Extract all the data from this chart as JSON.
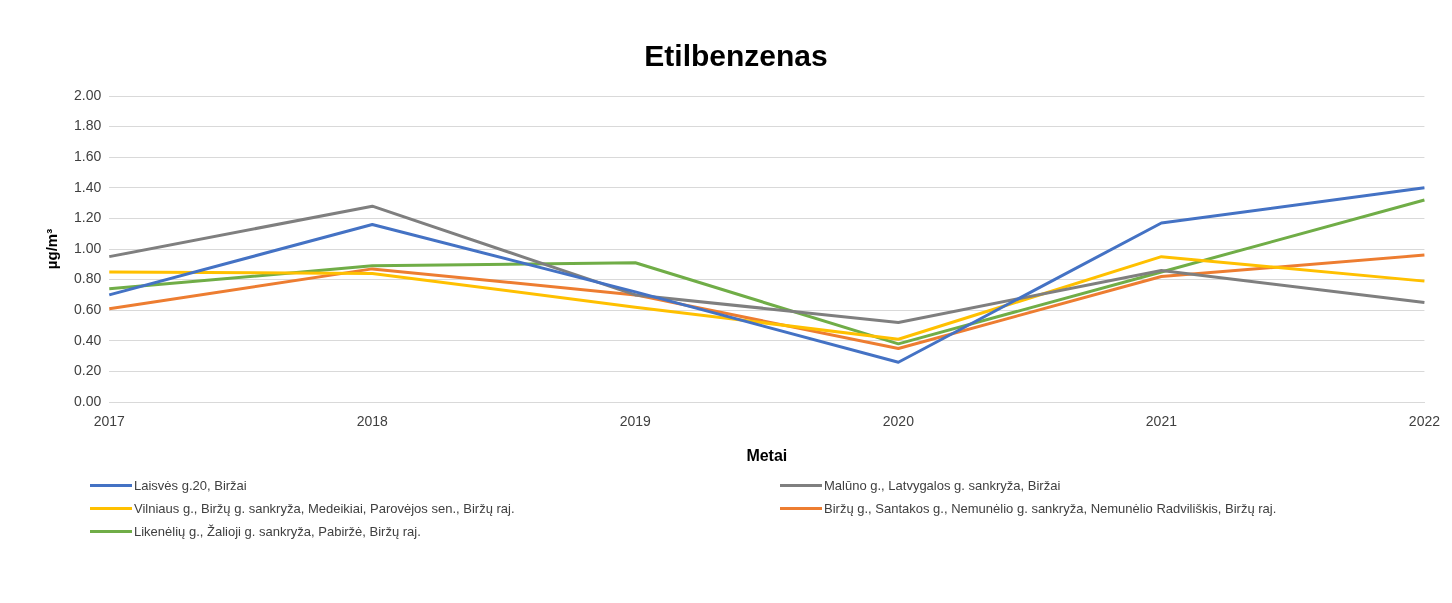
{
  "chart_data": {
    "type": "line",
    "title": "Etilbenzenas",
    "xlabel": "Metai",
    "ylabel": "µg/m³",
    "categories": [
      "2017",
      "2018",
      "2019",
      "2020",
      "2021",
      "2022"
    ],
    "series": [
      {
        "name": "Laisvės g.20, Biržai",
        "color": "#4472c4",
        "values": [
          0.7,
          1.16,
          0.72,
          0.26,
          1.17,
          1.4
        ]
      },
      {
        "name": "Malūno g., Latvygalos g. sankryža, Biržai",
        "color": "#7f7f7f",
        "values": [
          0.95,
          1.28,
          0.7,
          0.52,
          0.86,
          0.65
        ]
      },
      {
        "name": "Vilniaus g., Biržų g. sankryža, Medeikiai, Parovėjos sen., Biržų raj.",
        "color": "#ffc000",
        "values": [
          0.85,
          0.84,
          0.62,
          0.41,
          0.95,
          0.79
        ]
      },
      {
        "name": "Biržų g., Santakos g., Nemunėlio g. sankryža, Nemunėlio Radviliškis, Biržų raj.",
        "color": "#ed7d31",
        "values": [
          0.61,
          0.87,
          0.7,
          0.35,
          0.82,
          0.96
        ]
      },
      {
        "name": "Likenėlių g., Žalioji g. sankryža, Pabiržė, Biržų raj.",
        "color": "#70ad47",
        "values": [
          0.74,
          0.89,
          0.91,
          0.38,
          0.85,
          1.32
        ]
      }
    ],
    "ylim": [
      0,
      2
    ],
    "yticks": [
      {
        "value": 0,
        "label": "0.00"
      },
      {
        "value": 0.2,
        "label": "0.20"
      },
      {
        "value": 0.4,
        "label": "0.40"
      },
      {
        "value": 0.6,
        "label": "0.60"
      },
      {
        "value": 0.8,
        "label": "0.80"
      },
      {
        "value": 1,
        "label": "1.00"
      },
      {
        "value": 1.2,
        "label": "1.20"
      },
      {
        "value": 1.4,
        "label": "1.40"
      },
      {
        "value": 1.6,
        "label": "1.60"
      },
      {
        "value": 1.8,
        "label": "1.80"
      },
      {
        "value": 2,
        "label": "2.00"
      }
    ],
    "grid": "y",
    "legend": "bottom",
    "marker": "none",
    "line_style": "solid"
  }
}
